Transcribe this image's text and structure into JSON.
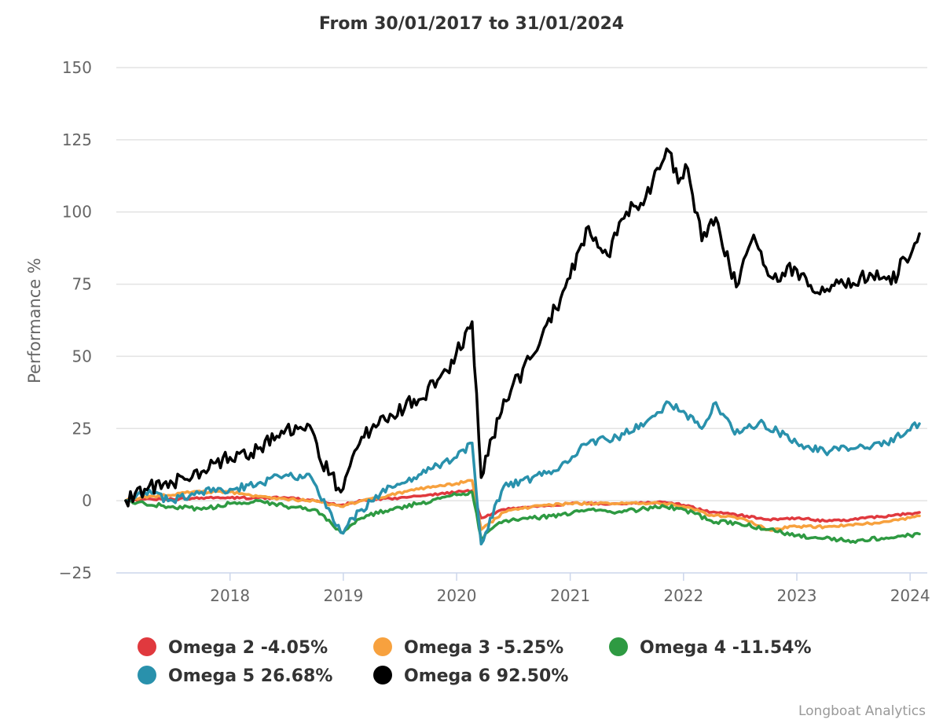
{
  "chart_data": {
    "type": "line",
    "title": "From 30/01/2017 to 31/01/2024",
    "ylabel": "Performance %",
    "xlabel": "",
    "ylim": [
      -25,
      150
    ],
    "yticks": [
      -25,
      0,
      25,
      50,
      75,
      100,
      125,
      150
    ],
    "xlim": [
      "2017-01-30",
      "2024-01-31"
    ],
    "xticks": [
      "2018",
      "2019",
      "2020",
      "2021",
      "2022",
      "2023",
      "2024"
    ],
    "grid": "horizontal",
    "legend": "bottom",
    "credit": "Longboat Analytics",
    "series": [
      {
        "name": "Omega 2 -4.05%",
        "color": "#e0393e",
        "points": [
          [
            "2017-01-30",
            0
          ],
          [
            "2017-04-01",
            0.5
          ],
          [
            "2017-07-01",
            0.5
          ],
          [
            "2017-10-01",
            1
          ],
          [
            "2018-01-01",
            1
          ],
          [
            "2018-04-01",
            1
          ],
          [
            "2018-07-01",
            1
          ],
          [
            "2018-10-01",
            0
          ],
          [
            "2018-12-24",
            -1.5
          ],
          [
            "2019-03-01",
            0
          ],
          [
            "2019-07-01",
            1
          ],
          [
            "2019-10-01",
            2
          ],
          [
            "2020-01-01",
            3
          ],
          [
            "2020-02-20",
            3.5
          ],
          [
            "2020-03-20",
            -6
          ],
          [
            "2020-06-01",
            -3
          ],
          [
            "2020-09-01",
            -2
          ],
          [
            "2021-01-01",
            -1
          ],
          [
            "2021-06-01",
            -1
          ],
          [
            "2021-11-01",
            -0.5
          ],
          [
            "2022-01-01",
            -1.5
          ],
          [
            "2022-04-01",
            -4
          ],
          [
            "2022-07-01",
            -5
          ],
          [
            "2022-10-01",
            -6.5
          ],
          [
            "2023-01-01",
            -6
          ],
          [
            "2023-04-01",
            -7
          ],
          [
            "2023-07-01",
            -6.5
          ],
          [
            "2023-10-01",
            -5.5
          ],
          [
            "2024-01-31",
            -4.05
          ]
        ]
      },
      {
        "name": "Omega 3 -5.25%",
        "color": "#f7a13e",
        "points": [
          [
            "2017-01-30",
            0
          ],
          [
            "2017-05-01",
            1.5
          ],
          [
            "2017-09-01",
            3
          ],
          [
            "2018-01-01",
            3
          ],
          [
            "2018-04-01",
            1.5
          ],
          [
            "2018-07-01",
            0.5
          ],
          [
            "2018-10-01",
            0
          ],
          [
            "2018-12-24",
            -2
          ],
          [
            "2019-03-01",
            0
          ],
          [
            "2019-06-01",
            2
          ],
          [
            "2019-09-01",
            4
          ],
          [
            "2020-01-01",
            6
          ],
          [
            "2020-02-20",
            7
          ],
          [
            "2020-03-20",
            -10
          ],
          [
            "2020-06-01",
            -4
          ],
          [
            "2020-09-01",
            -2
          ],
          [
            "2021-01-01",
            -1
          ],
          [
            "2021-06-01",
            -1
          ],
          [
            "2021-11-01",
            -1
          ],
          [
            "2022-01-01",
            -2
          ],
          [
            "2022-04-01",
            -5
          ],
          [
            "2022-07-01",
            -6
          ],
          [
            "2022-10-01",
            -10
          ],
          [
            "2023-01-01",
            -9
          ],
          [
            "2023-04-01",
            -9
          ],
          [
            "2023-07-01",
            -8.5
          ],
          [
            "2023-10-01",
            -7.5
          ],
          [
            "2024-01-31",
            -5.25
          ]
        ]
      },
      {
        "name": "Omega 4 -11.54%",
        "color": "#2e9a42",
        "points": [
          [
            "2017-01-30",
            0
          ],
          [
            "2017-04-01",
            -1
          ],
          [
            "2017-07-01",
            -2
          ],
          [
            "2017-10-01",
            -3
          ],
          [
            "2018-01-01",
            -1
          ],
          [
            "2018-04-01",
            0
          ],
          [
            "2018-07-01",
            -2
          ],
          [
            "2018-10-01",
            -3
          ],
          [
            "2018-12-24",
            -11
          ],
          [
            "2019-03-01",
            -6
          ],
          [
            "2019-06-01",
            -3
          ],
          [
            "2019-09-01",
            -1
          ],
          [
            "2020-01-01",
            2
          ],
          [
            "2020-02-20",
            3
          ],
          [
            "2020-03-20",
            -13
          ],
          [
            "2020-06-01",
            -7
          ],
          [
            "2020-09-01",
            -6
          ],
          [
            "2020-12-01",
            -5
          ],
          [
            "2021-03-01",
            -3
          ],
          [
            "2021-06-01",
            -4
          ],
          [
            "2021-11-01",
            -2
          ],
          [
            "2022-01-01",
            -3
          ],
          [
            "2022-04-01",
            -7
          ],
          [
            "2022-07-01",
            -8
          ],
          [
            "2022-10-01",
            -10
          ],
          [
            "2023-01-01",
            -12
          ],
          [
            "2023-04-01",
            -13
          ],
          [
            "2023-07-01",
            -14
          ],
          [
            "2023-10-01",
            -13
          ],
          [
            "2024-01-31",
            -11.54
          ]
        ]
      },
      {
        "name": "Omega 5 26.68%",
        "color": "#2991ac",
        "points": [
          [
            "2017-01-30",
            0
          ],
          [
            "2017-04-01",
            3
          ],
          [
            "2017-07-01",
            0
          ],
          [
            "2017-10-01",
            3
          ],
          [
            "2018-01-01",
            4
          ],
          [
            "2018-04-01",
            6
          ],
          [
            "2018-07-01",
            9
          ],
          [
            "2018-09-20",
            8
          ],
          [
            "2018-10-15",
            2
          ],
          [
            "2018-12-24",
            -11
          ],
          [
            "2019-03-01",
            -3
          ],
          [
            "2019-06-01",
            5
          ],
          [
            "2019-09-01",
            9
          ],
          [
            "2020-01-01",
            15
          ],
          [
            "2020-02-20",
            20
          ],
          [
            "2020-03-20",
            -15
          ],
          [
            "2020-06-01",
            5
          ],
          [
            "2020-09-01",
            8
          ],
          [
            "2020-12-01",
            12
          ],
          [
            "2021-03-01",
            20
          ],
          [
            "2021-06-01",
            22
          ],
          [
            "2021-09-01",
            27
          ],
          [
            "2021-11-15",
            34
          ],
          [
            "2022-01-01",
            31
          ],
          [
            "2022-03-01",
            25
          ],
          [
            "2022-04-15",
            34
          ],
          [
            "2022-06-15",
            23
          ],
          [
            "2022-09-01",
            27
          ],
          [
            "2022-11-01",
            24
          ],
          [
            "2023-01-01",
            20
          ],
          [
            "2023-04-01",
            17
          ],
          [
            "2023-07-01",
            18
          ],
          [
            "2023-10-01",
            19
          ],
          [
            "2024-01-31",
            26.68
          ]
        ]
      },
      {
        "name": "Omega 6 92.50%",
        "color": "#000000",
        "points": [
          [
            "2017-01-30",
            0
          ],
          [
            "2017-04-01",
            4
          ],
          [
            "2017-07-01",
            6
          ],
          [
            "2017-10-01",
            10
          ],
          [
            "2018-01-01",
            15
          ],
          [
            "2018-04-01",
            18
          ],
          [
            "2018-07-01",
            25
          ],
          [
            "2018-09-15",
            26
          ],
          [
            "2018-10-15",
            15
          ],
          [
            "2018-12-24",
            3
          ],
          [
            "2019-03-01",
            22
          ],
          [
            "2019-06-01",
            30
          ],
          [
            "2019-09-01",
            35
          ],
          [
            "2019-12-01",
            45
          ],
          [
            "2020-02-20",
            62
          ],
          [
            "2020-03-20",
            8
          ],
          [
            "2020-06-01",
            35
          ],
          [
            "2020-09-01",
            50
          ],
          [
            "2020-12-01",
            70
          ],
          [
            "2021-03-01",
            95
          ],
          [
            "2021-05-01",
            85
          ],
          [
            "2021-07-01",
            100
          ],
          [
            "2021-09-01",
            105
          ],
          [
            "2021-11-15",
            121
          ],
          [
            "2021-12-15",
            110
          ],
          [
            "2022-01-15",
            115
          ],
          [
            "2022-03-01",
            90
          ],
          [
            "2022-04-15",
            98
          ],
          [
            "2022-06-20",
            74
          ],
          [
            "2022-08-15",
            92
          ],
          [
            "2022-10-01",
            78
          ],
          [
            "2023-01-01",
            80
          ],
          [
            "2023-03-01",
            72
          ],
          [
            "2023-06-01",
            75
          ],
          [
            "2023-09-01",
            78
          ],
          [
            "2023-11-01",
            75
          ],
          [
            "2024-01-31",
            92.5
          ]
        ]
      }
    ]
  }
}
